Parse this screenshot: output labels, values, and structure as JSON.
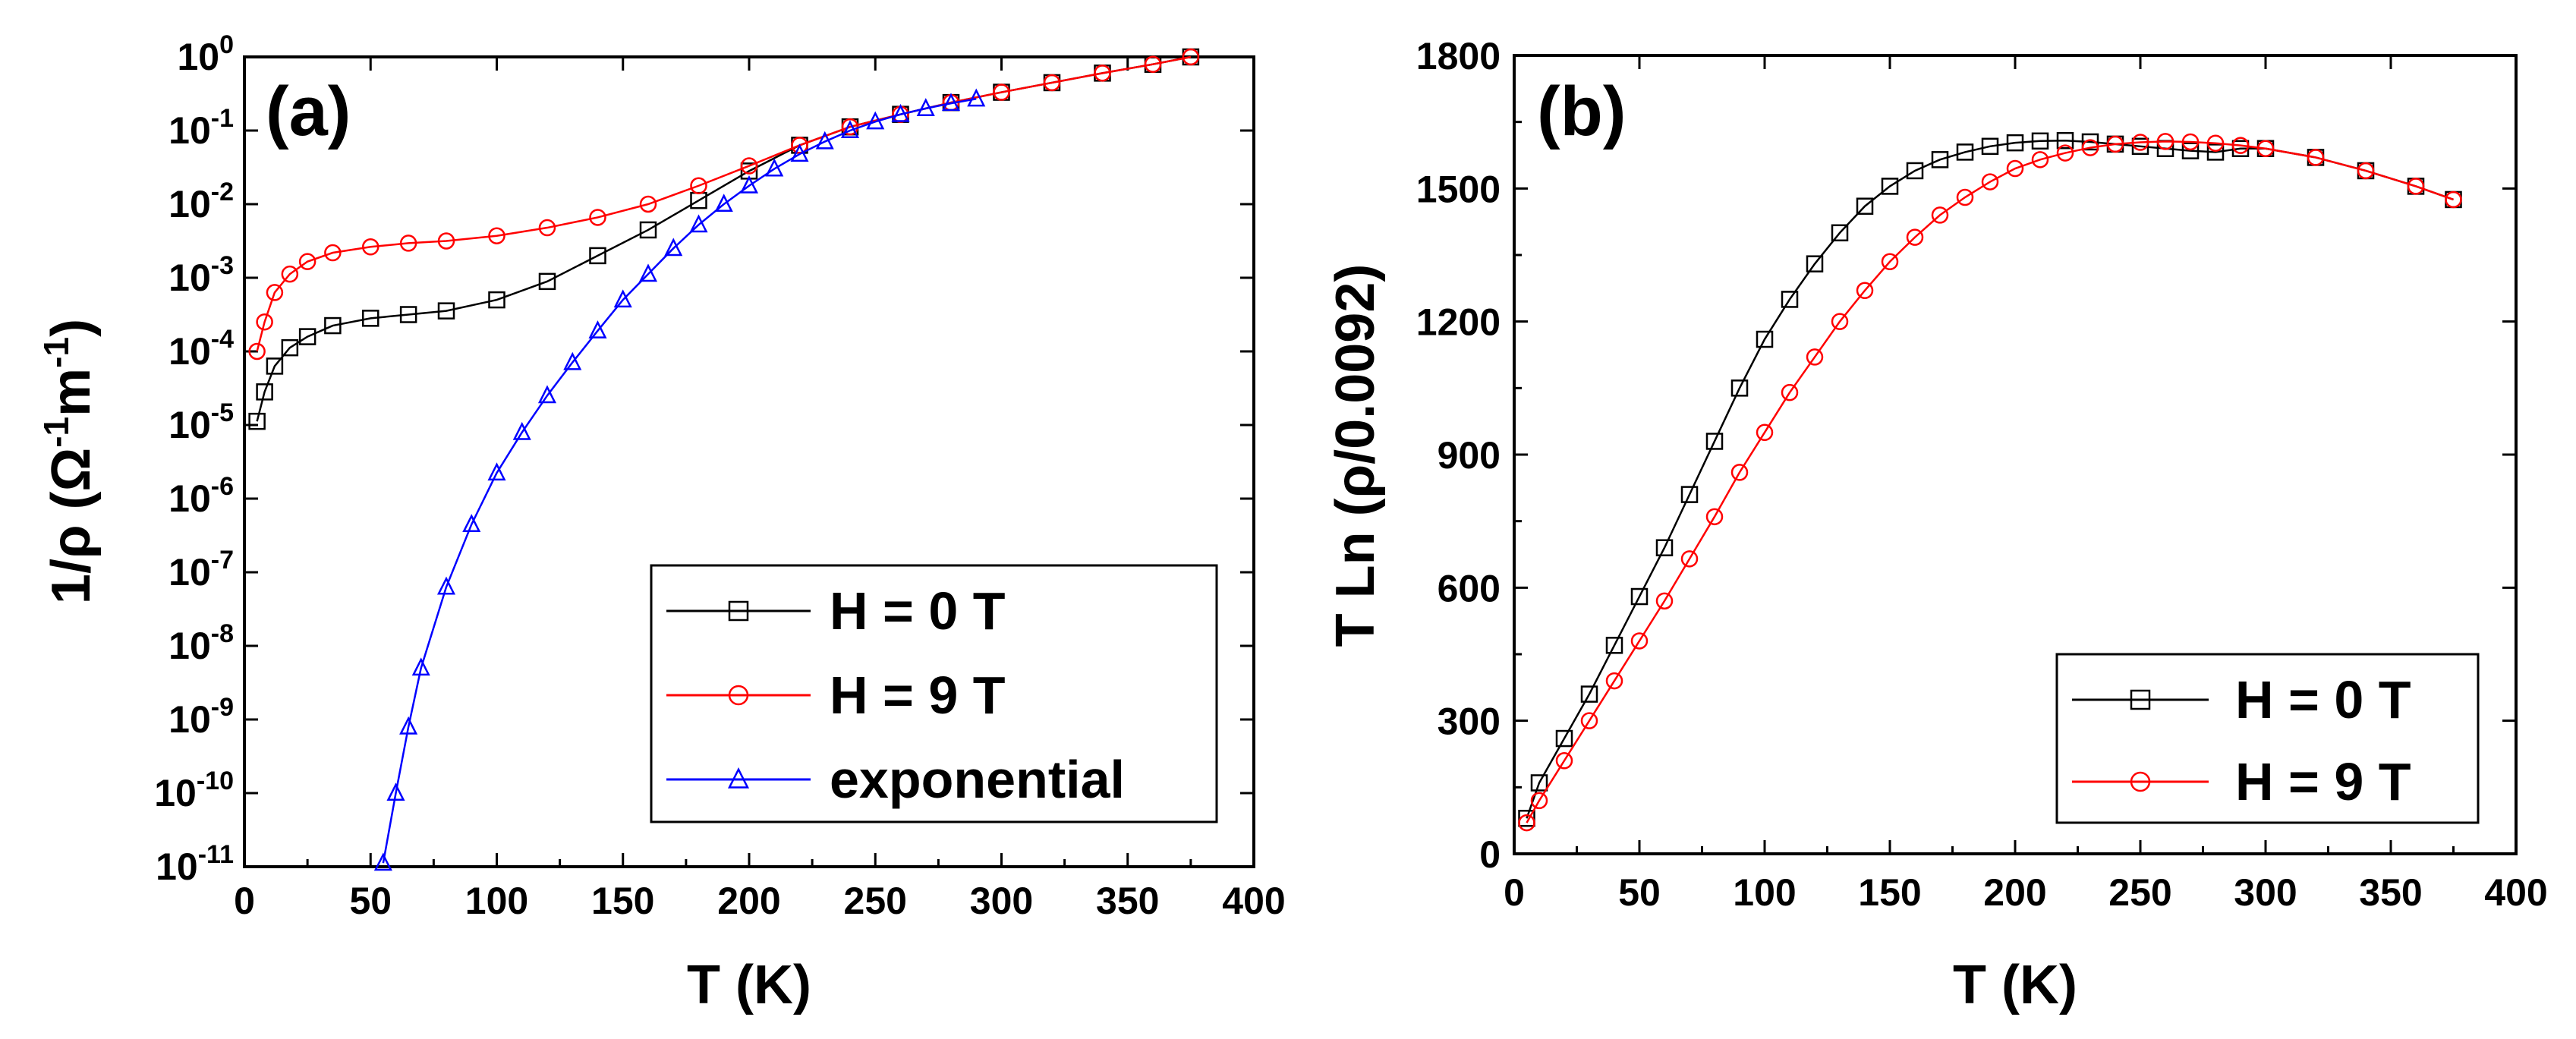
{
  "chart_data": [
    {
      "type": "scatter",
      "panel_label": "(a)",
      "xlabel": "T (K)",
      "ylabel": {
        "prefix": "1/ρ (Ω",
        "sup1": "-1",
        "mid": "m",
        "sup2": "-1",
        "suffix": ")"
      },
      "yscale": "log",
      "xlim": [
        0,
        400
      ],
      "ylim_exp": [
        -11,
        0
      ],
      "xticks": [
        "0",
        "50",
        "100",
        "150",
        "200",
        "250",
        "300",
        "350",
        "400"
      ],
      "yticks": [
        {
          "exp": 0,
          "base": "10",
          "sup": "0"
        },
        {
          "exp": -1,
          "base": "10",
          "sup": "-1"
        },
        {
          "exp": -2,
          "base": "10",
          "sup": "-2"
        },
        {
          "exp": -3,
          "base": "10",
          "sup": "-3"
        },
        {
          "exp": -4,
          "base": "10",
          "sup": "-4"
        },
        {
          "exp": -5,
          "base": "10",
          "sup": "-5"
        },
        {
          "exp": -6,
          "base": "10",
          "sup": "-6"
        },
        {
          "exp": -7,
          "base": "10",
          "sup": "-7"
        },
        {
          "exp": -8,
          "base": "10",
          "sup": "-8"
        },
        {
          "exp": -9,
          "base": "10",
          "sup": "-9"
        },
        {
          "exp": -10,
          "base": "10",
          "sup": "-10"
        },
        {
          "exp": -11,
          "base": "10",
          "sup": "-11"
        }
      ],
      "legend_position": "bottom-right",
      "series": [
        {
          "name": "H = 0 T",
          "color": "#000000",
          "marker": "square",
          "x": [
            5,
            8,
            12,
            18,
            25,
            35,
            50,
            65,
            80,
            100,
            120,
            140,
            160,
            180,
            200,
            220,
            240,
            260,
            280,
            300,
            320,
            340,
            360,
            375
          ],
          "log10y": [
            -4.95,
            -4.55,
            -4.2,
            -3.95,
            -3.8,
            -3.65,
            -3.55,
            -3.5,
            -3.45,
            -3.3,
            -3.05,
            -2.7,
            -2.35,
            -1.95,
            -1.55,
            -1.2,
            -0.95,
            -0.78,
            -0.62,
            -0.48,
            -0.35,
            -0.22,
            -0.1,
            0.0
          ]
        },
        {
          "name": "H = 9 T",
          "color": "#ff0000",
          "marker": "circle",
          "x": [
            5,
            8,
            12,
            18,
            25,
            35,
            50,
            65,
            80,
            100,
            120,
            140,
            160,
            180,
            200,
            220,
            240,
            260,
            280,
            300,
            320,
            340,
            360,
            375
          ],
          "log10y": [
            -4.0,
            -3.6,
            -3.2,
            -2.95,
            -2.78,
            -2.66,
            -2.58,
            -2.53,
            -2.5,
            -2.43,
            -2.32,
            -2.18,
            -2.0,
            -1.75,
            -1.48,
            -1.2,
            -0.95,
            -0.78,
            -0.62,
            -0.48,
            -0.35,
            -0.22,
            -0.1,
            0.0
          ]
        },
        {
          "name": "exponential",
          "color": "#0000ff",
          "marker": "triangle",
          "x": [
            55,
            60,
            65,
            70,
            80,
            90,
            100,
            110,
            120,
            130,
            140,
            150,
            160,
            170,
            180,
            190,
            200,
            210,
            220,
            230,
            240,
            250,
            260,
            270,
            280,
            290
          ],
          "log10y": [
            -10.95,
            -10.0,
            -9.1,
            -8.3,
            -7.2,
            -6.35,
            -5.65,
            -5.1,
            -4.6,
            -4.15,
            -3.72,
            -3.3,
            -2.95,
            -2.6,
            -2.28,
            -2.0,
            -1.75,
            -1.52,
            -1.32,
            -1.15,
            -1.0,
            -0.88,
            -0.78,
            -0.7,
            -0.63,
            -0.57
          ]
        }
      ]
    },
    {
      "type": "scatter",
      "panel_label": "(b)",
      "xlabel": "T (K)",
      "ylabel": "T Ln (ρ/0.0092)",
      "xlim": [
        0,
        400
      ],
      "ylim": [
        0,
        1800
      ],
      "xticks": [
        "0",
        "50",
        "100",
        "150",
        "200",
        "250",
        "300",
        "350",
        "400"
      ],
      "yticks": [
        "0",
        "300",
        "600",
        "900",
        "1200",
        "1500",
        "1800"
      ],
      "legend_position": "bottom-right",
      "series": [
        {
          "name": "H = 0 T",
          "color": "#000000",
          "marker": "square",
          "x": [
            5,
            10,
            20,
            30,
            40,
            50,
            60,
            70,
            80,
            90,
            100,
            110,
            120,
            130,
            140,
            150,
            160,
            170,
            180,
            190,
            200,
            210,
            220,
            230,
            240,
            250,
            260,
            270,
            280,
            290,
            300,
            320,
            340,
            360,
            375
          ],
          "y": [
            80,
            160,
            260,
            360,
            470,
            580,
            690,
            810,
            930,
            1050,
            1160,
            1250,
            1330,
            1400,
            1460,
            1505,
            1540,
            1565,
            1582,
            1595,
            1603,
            1607,
            1608,
            1605,
            1600,
            1595,
            1590,
            1585,
            1582,
            1590,
            1590,
            1570,
            1540,
            1505,
            1475
          ]
        },
        {
          "name": "H = 9 T",
          "color": "#ff0000",
          "marker": "circle",
          "x": [
            5,
            10,
            20,
            30,
            40,
            50,
            60,
            70,
            80,
            90,
            100,
            110,
            120,
            130,
            140,
            150,
            160,
            170,
            180,
            190,
            200,
            210,
            220,
            230,
            240,
            250,
            260,
            270,
            280,
            290,
            300,
            320,
            340,
            360,
            375
          ],
          "y": [
            70,
            120,
            210,
            300,
            390,
            480,
            570,
            665,
            760,
            860,
            950,
            1040,
            1120,
            1200,
            1270,
            1335,
            1390,
            1440,
            1480,
            1515,
            1545,
            1565,
            1580,
            1592,
            1600,
            1604,
            1606,
            1605,
            1602,
            1597,
            1590,
            1570,
            1540,
            1505,
            1475
          ]
        }
      ]
    }
  ]
}
